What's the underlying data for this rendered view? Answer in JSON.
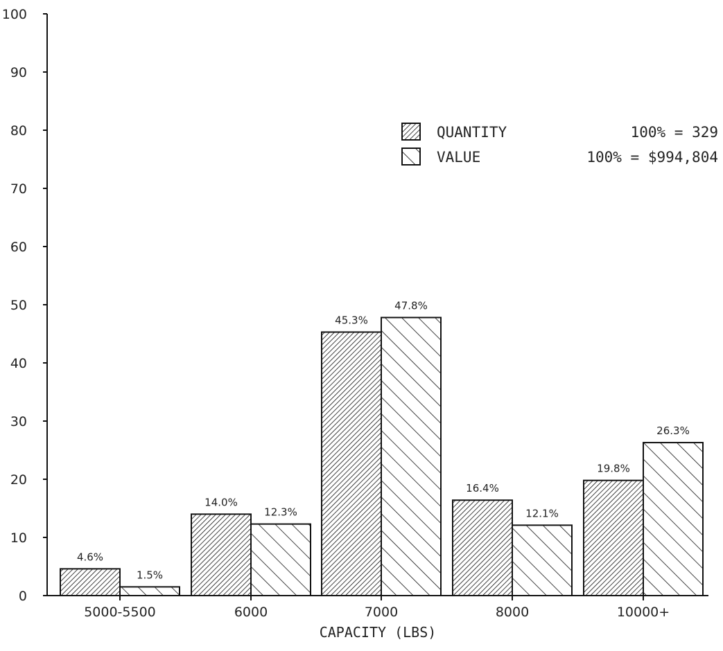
{
  "chart_data": {
    "type": "bar",
    "xlabel": "CAPACITY (LBS)",
    "ylabel": "",
    "ylim": [
      0,
      100
    ],
    "yticks": [
      0,
      10,
      20,
      30,
      40,
      50,
      60,
      70,
      80,
      90,
      100
    ],
    "grid": false,
    "legend_position": "top-right",
    "categories": [
      "5000-5500",
      "6000",
      "7000",
      "8000",
      "10000+"
    ],
    "series": [
      {
        "name": "QUANTITY",
        "legend_value": "100% = 329",
        "hatch": "fine-diagonal",
        "values": [
          4.6,
          14.0,
          45.3,
          16.4,
          19.8
        ],
        "labels": [
          "4.6%",
          "14.0%",
          "45.3%",
          "16.4%",
          "19.8%"
        ]
      },
      {
        "name": "VALUE",
        "legend_value": "100% = $994,804",
        "hatch": "wide-back-diagonal",
        "values": [
          1.5,
          12.3,
          47.8,
          12.1,
          26.3
        ],
        "labels": [
          "1.5%",
          "12.3%",
          "47.8%",
          "12.1%",
          "26.3%"
        ]
      }
    ]
  }
}
